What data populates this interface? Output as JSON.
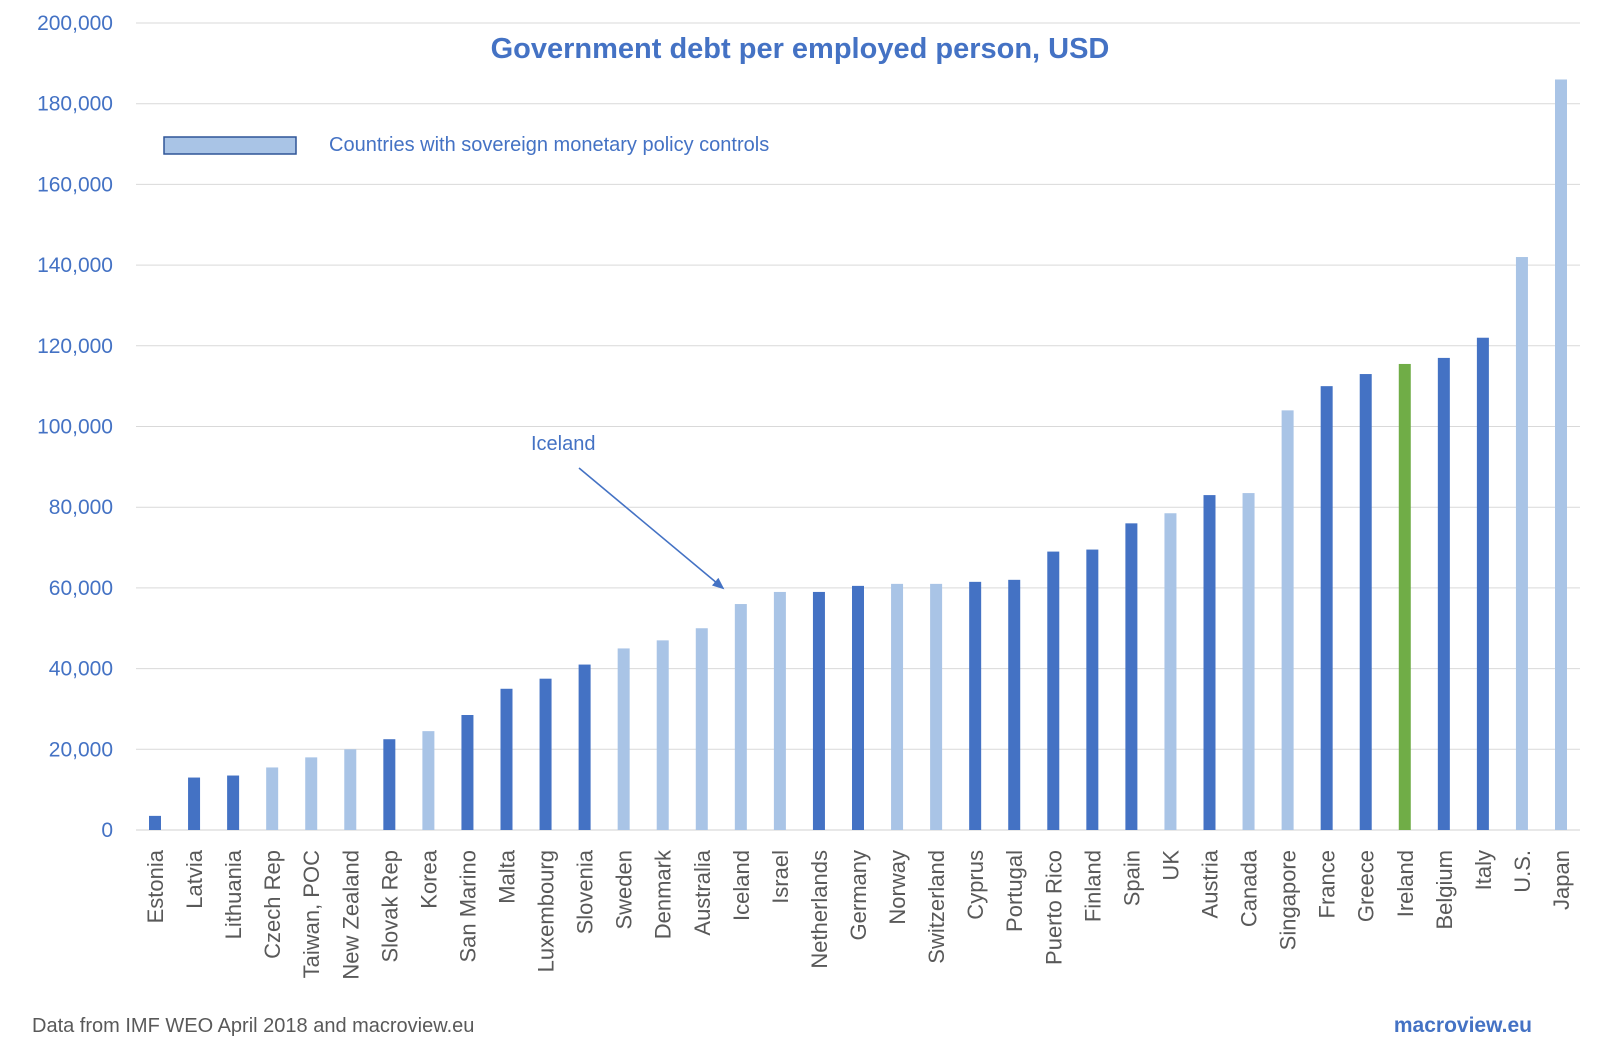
{
  "chart_data": {
    "type": "bar",
    "title": "Government debt per employed person, USD",
    "xlabel": "",
    "ylabel": "",
    "ylim": [
      0,
      200000
    ],
    "yticks": [
      0,
      20000,
      40000,
      60000,
      80000,
      100000,
      120000,
      140000,
      160000,
      180000,
      200000
    ],
    "ytick_labels": [
      "0",
      "20,000",
      "40,000",
      "60,000",
      "80,000",
      "100,000",
      "120,000",
      "140,000",
      "160,000",
      "180,000",
      "200,000"
    ],
    "grid": true,
    "categories": [
      "Estonia",
      "Latvia",
      "Lithuania",
      "Czech Rep",
      "Taiwan, POC",
      "New Zealand",
      "Slovak Rep",
      "Korea",
      "San Marino",
      "Malta",
      "Luxembourg",
      "Slovenia",
      "Sweden",
      "Denmark",
      "Australia",
      "Iceland",
      "Israel",
      "Netherlands",
      "Germany",
      "Norway",
      "Switzerland",
      "Cyprus",
      "Portugal",
      "Puerto Rico",
      "Finland",
      "Spain",
      "UK",
      "Austria",
      "Canada",
      "Singapore",
      "France",
      "Greece",
      "Ireland",
      "Belgium",
      "Italy",
      "U.S.",
      "Japan"
    ],
    "values": [
      3500,
      13000,
      13500,
      15500,
      18000,
      20000,
      22500,
      24500,
      28500,
      35000,
      37500,
      41000,
      45000,
      47000,
      50000,
      56000,
      59000,
      59000,
      60500,
      61000,
      61000,
      61500,
      62000,
      69000,
      69500,
      76000,
      78500,
      83000,
      83500,
      104000,
      110000,
      113000,
      115500,
      117000,
      122000,
      142000,
      186000
    ],
    "bar_groups": [
      "other",
      "other",
      "other",
      "sovereign",
      "sovereign",
      "sovereign",
      "other",
      "sovereign",
      "other",
      "other",
      "other",
      "other",
      "sovereign",
      "sovereign",
      "sovereign",
      "sovereign",
      "sovereign",
      "other",
      "other",
      "sovereign",
      "sovereign",
      "other",
      "other",
      "other",
      "other",
      "other",
      "sovereign",
      "other",
      "sovereign",
      "sovereign",
      "other",
      "other",
      "highlight",
      "other",
      "other",
      "sovereign",
      "sovereign"
    ],
    "colors": {
      "other": "#4472c4",
      "sovereign": "#a9c4e6",
      "highlight": "#70ad47",
      "grid": "#d9d9d9",
      "text_blue": "#4472c4",
      "text_gray": "#595959"
    },
    "legend": {
      "placement": "top-left",
      "entries": [
        {
          "label": "Countries with sovereign monetary policy controls",
          "group": "sovereign"
        }
      ]
    },
    "annotations": [
      {
        "text": "Iceland",
        "target_category": "Iceland",
        "type": "arrow"
      }
    ]
  },
  "footer": {
    "source": "Data from IMF WEO April 2018 and macroview.eu",
    "brand": "macroview.eu"
  }
}
